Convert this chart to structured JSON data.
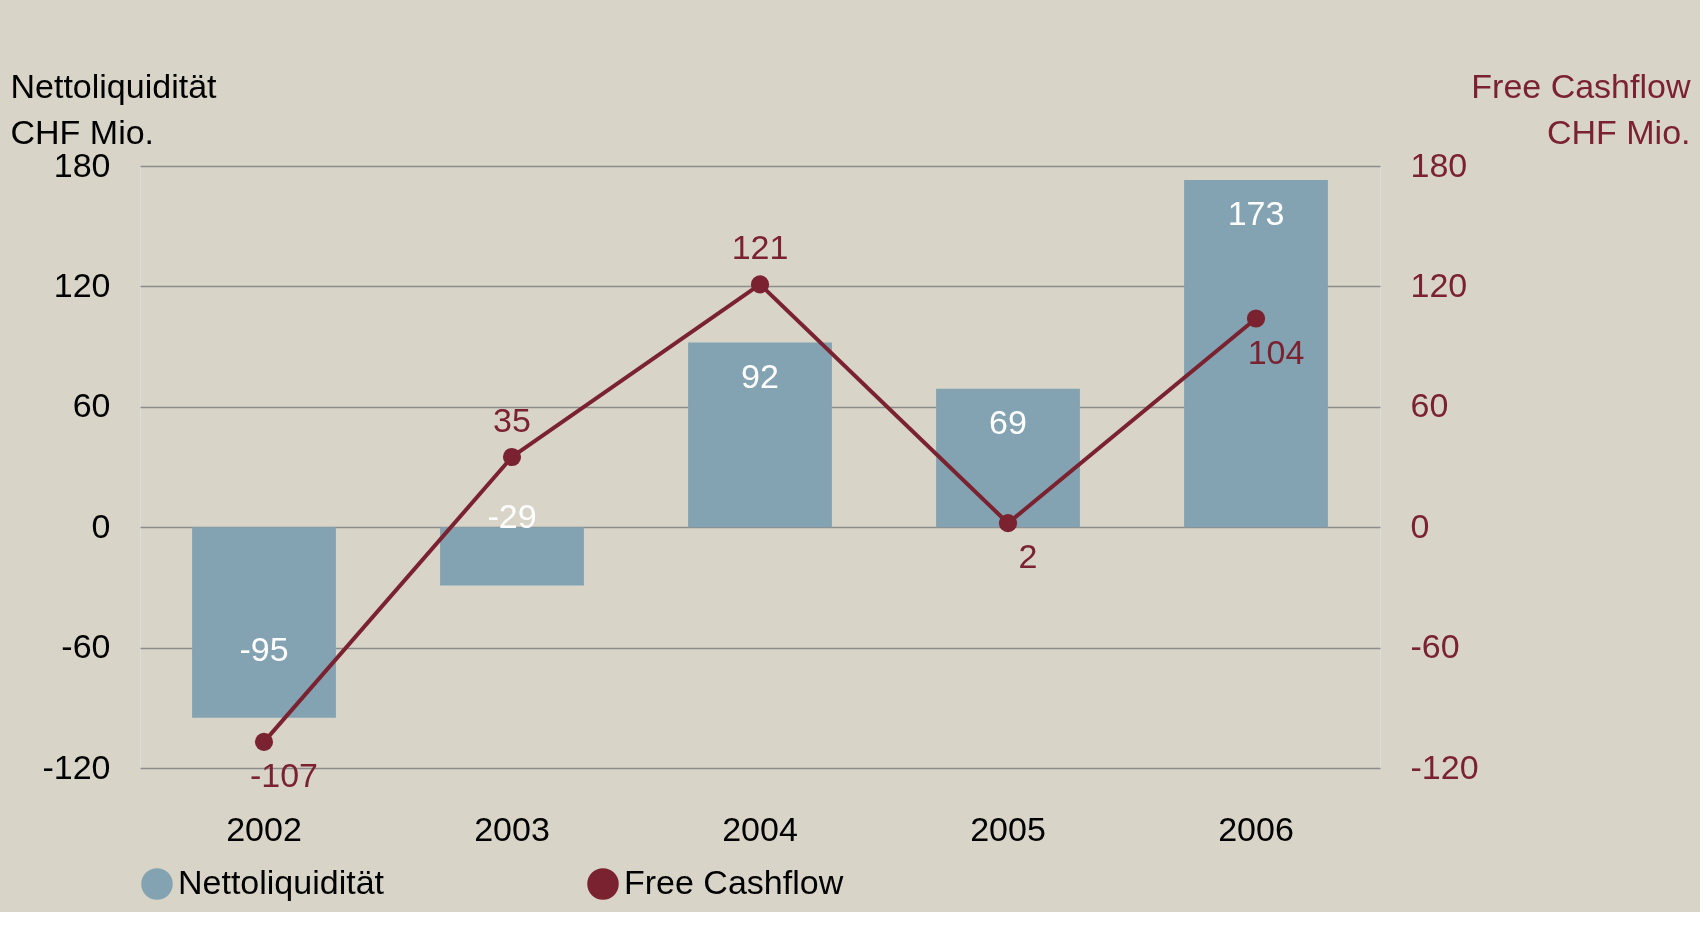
{
  "chart_data": {
    "type": "bar",
    "categories": [
      "2002",
      "2003",
      "2004",
      "2005",
      "2006"
    ],
    "ylabel": "Nettoliquidität\nCHF Mio.",
    "y2label": "Free Cashflow\nCHF Mio.",
    "ylim": [
      -120,
      180
    ],
    "yticks": [
      -120,
      -60,
      0,
      60,
      120,
      180
    ],
    "y2lim": [
      -120,
      180
    ],
    "y2ticks": [
      -120,
      -60,
      0,
      60,
      120,
      180
    ],
    "series": [
      {
        "name": "Nettoliquidität",
        "color": "#84a3b2",
        "values": [
          -95,
          -29,
          92,
          69,
          173
        ]
      },
      {
        "name": "Free Cashflow",
        "type": "line",
        "axis": "y2",
        "color": "#7a2230",
        "values": [
          -107,
          35,
          121,
          2,
          104
        ]
      }
    ],
    "data_labels": true,
    "grid": "y",
    "legend": "bottom",
    "marker": "circle",
    "line_style": "solid"
  }
}
